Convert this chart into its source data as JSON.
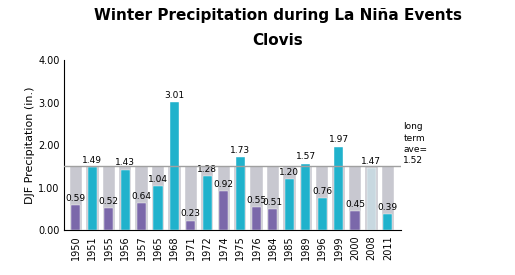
{
  "title_line1": "Winter Precipitation during La Niña Events",
  "title_line2": "Clovis",
  "ylabel": "DJF Precipitation (in.)",
  "ylim": [
    0,
    4.0
  ],
  "yticks": [
    0.0,
    1.0,
    2.0,
    3.0,
    4.0
  ],
  "long_term_avg": 1.52,
  "long_term_label": "long\nterm\nave=\n1.52",
  "categories": [
    "1950",
    "1951",
    "1955",
    "1956",
    "1957",
    "1965",
    "1968",
    "1971",
    "1972",
    "1974",
    "1975",
    "1976",
    "1984",
    "1985",
    "1989",
    "1996",
    "1999",
    "2000",
    "2008",
    "2011"
  ],
  "values": [
    0.59,
    1.49,
    0.52,
    1.43,
    0.64,
    1.04,
    3.01,
    0.23,
    1.28,
    0.92,
    1.73,
    0.55,
    0.51,
    1.2,
    1.57,
    0.76,
    1.97,
    0.45,
    1.47,
    0.39
  ],
  "colors": [
    "#7B68AA",
    "#20B2CC",
    "#7B68AA",
    "#20B2CC",
    "#7B68AA",
    "#20B2CC",
    "#20B2CC",
    "#7B68AA",
    "#20B2CC",
    "#7B68AA",
    "#20B2CC",
    "#7B68AA",
    "#7B68AA",
    "#20B2CC",
    "#20B2CC",
    "#20B2CC",
    "#20B2CC",
    "#7B68AA",
    "#C8D8E0",
    "#20B2CC"
  ],
  "bg_bar_color": "#C8C8D0",
  "avg_line_color": "#A0A0A0",
  "background_color": "#ffffff",
  "title_fontsize": 11,
  "subtitle_fontsize": 11,
  "bar_label_fontsize": 6.5,
  "axis_label_fontsize": 8,
  "tick_fontsize": 7,
  "bar_width": 0.55,
  "bg_bar_width": 0.75
}
